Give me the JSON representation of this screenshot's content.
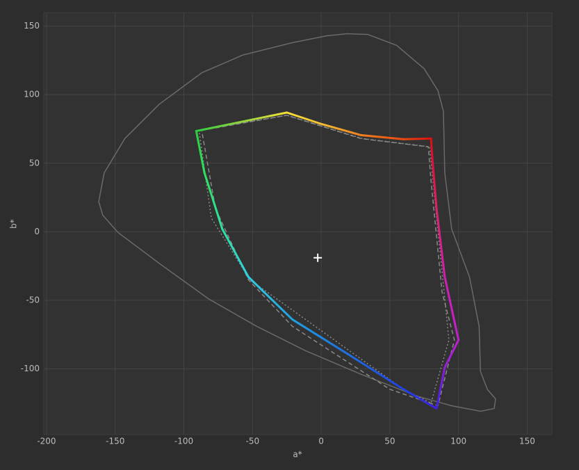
{
  "chart_data": {
    "type": "line",
    "x_label": "a*",
    "y_label": "b*",
    "xlim": [
      -202,
      168
    ],
    "ylim": [
      -148,
      160
    ],
    "xticks": [
      -200,
      -150,
      -100,
      -50,
      0,
      50,
      100,
      150
    ],
    "yticks": [
      -100,
      -50,
      0,
      50,
      100,
      150
    ],
    "grid": true,
    "series": [
      {
        "style": "solid",
        "color": "#6a6a6a",
        "x": [
          19,
          4,
          -21,
          -57,
          -87,
          -118,
          -143,
          -158,
          -162,
          -159,
          -148,
          -118,
          -82,
          -47,
          -11,
          29,
          70,
          95,
          116,
          126,
          127,
          121,
          116,
          115,
          108,
          95,
          90,
          89,
          85,
          75,
          55,
          34,
          19
        ],
        "y": [
          144.5,
          143,
          138,
          129,
          116,
          93,
          68,
          43,
          22,
          12,
          -0.5,
          -23,
          -49,
          -69,
          -87,
          -104,
          -120,
          -127,
          -131,
          -129,
          -122,
          -115,
          -102,
          -69,
          -33,
          2,
          43,
          88,
          103,
          119,
          136,
          144,
          144.5
        ]
      },
      {
        "style": "dotted",
        "color": "#8a8a8a",
        "x": [
          -89,
          -25,
          30,
          79,
          93,
          80,
          60,
          -52,
          -80,
          -89
        ],
        "y": [
          74,
          85,
          68,
          62,
          -79,
          -125,
          -115,
          -35,
          10,
          74
        ]
      },
      {
        "style": "dashed",
        "color": "#8a8a8a",
        "x": [
          -87,
          -25,
          29,
          78,
          80,
          88,
          97,
          85,
          50,
          -21,
          -53,
          -77,
          -87
        ],
        "y": [
          74,
          85,
          68,
          62,
          37,
          -44,
          -79,
          -127,
          -115,
          -69,
          -35,
          17,
          74
        ]
      },
      {
        "style": "gradient",
        "colors": [
          "#2ecc40",
          "#f5e03a",
          "#f2c030",
          "#f08020",
          "#e84a10",
          "#e01010",
          "#e0103a",
          "#e0206a",
          "#d020b0",
          "#c020d0",
          "#9020d8",
          "#4020e0",
          "#2040e0",
          "#2070e0",
          "#20a0e0",
          "#30d0e0",
          "#30e0a0",
          "#30e060",
          "#2ecc40"
        ],
        "x": [
          -91,
          -25,
          -1,
          29,
          60,
          80,
          81,
          84,
          90,
          100,
          90,
          84,
          60,
          19,
          -21,
          -53,
          -72,
          -85,
          -91
        ],
        "y": [
          73.5,
          87,
          79,
          70.5,
          67.5,
          68,
          53,
          17,
          -33,
          -79,
          -99,
          -129,
          -115,
          -89,
          -64,
          -33,
          2,
          43,
          73.5
        ]
      },
      {
        "style": "cross",
        "color": "#ffffff",
        "x": [
          -2.5
        ],
        "y": [
          -19
        ]
      }
    ]
  }
}
